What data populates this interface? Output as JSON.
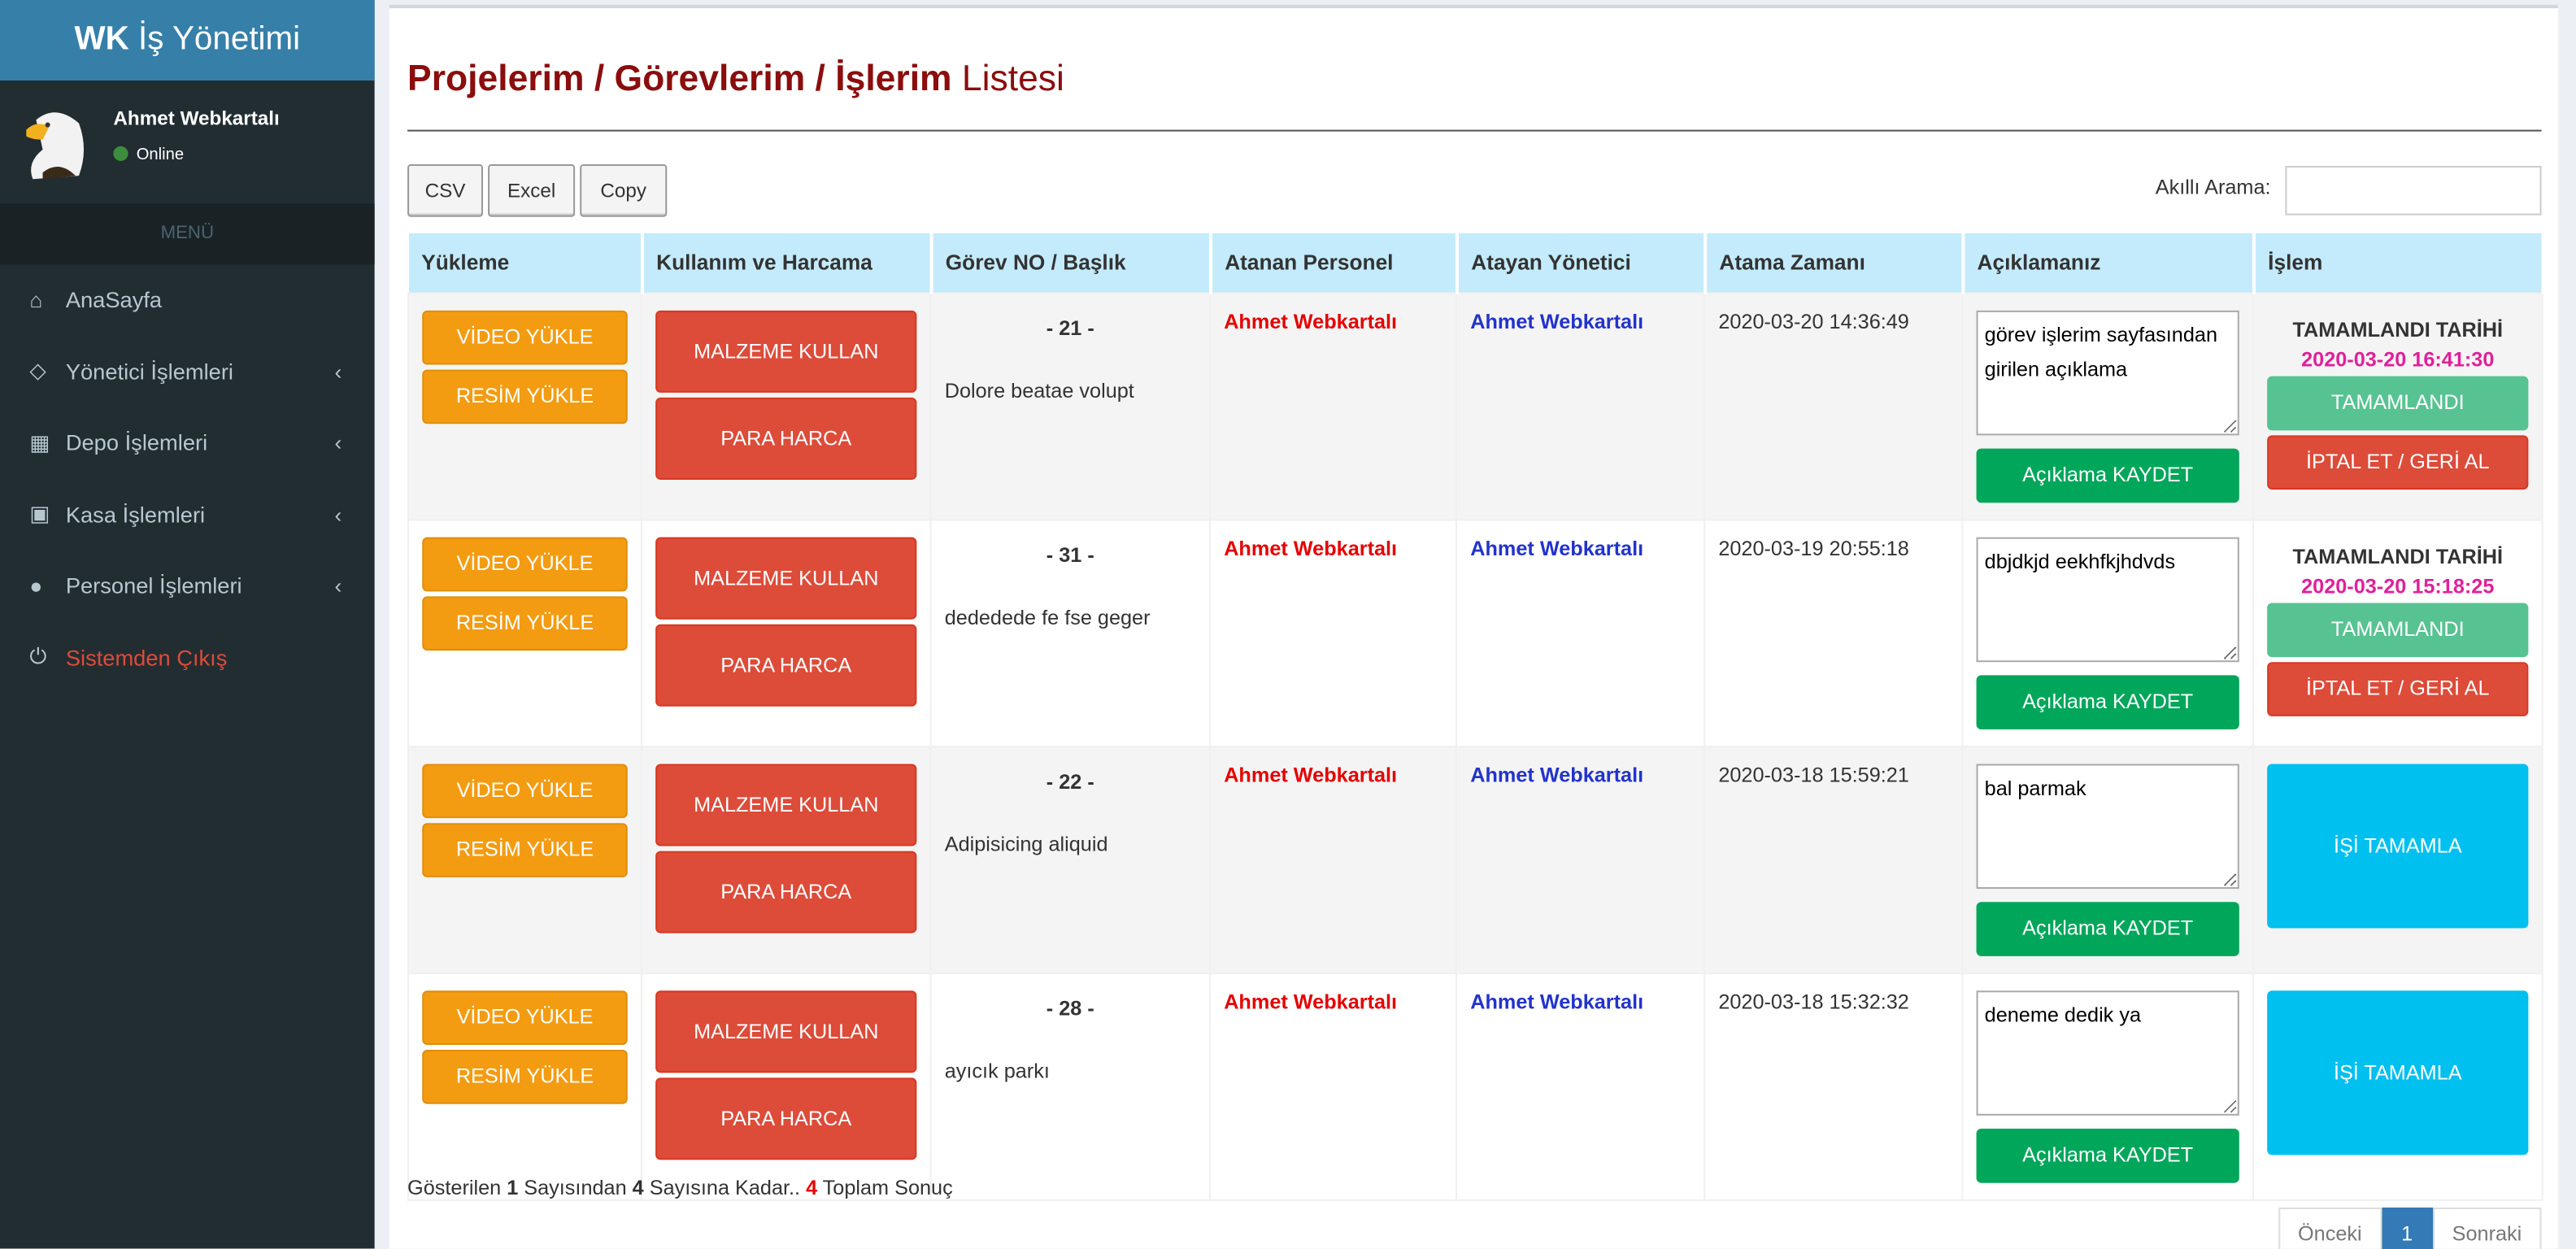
{
  "sidebar": {
    "logo_bold": "WK",
    "logo_rest": " İş Yönetimi",
    "user_name": "Ahmet Webkartalı",
    "status": "Online",
    "menu_header": "MENÜ",
    "items": [
      {
        "label": "AnaSayfa",
        "icon": "home-icon",
        "glyph": "⌂",
        "chevron": false
      },
      {
        "label": "Yönetici İşlemleri",
        "icon": "diamond-icon",
        "glyph": "◇",
        "chevron": true
      },
      {
        "label": "Depo İşlemleri",
        "icon": "cubes-icon",
        "glyph": "▦",
        "chevron": true
      },
      {
        "label": "Kasa İşlemleri",
        "icon": "money-icon",
        "glyph": "▣",
        "chevron": true
      },
      {
        "label": "Personel İşlemleri",
        "icon": "user-icon",
        "glyph": "●",
        "chevron": true
      },
      {
        "label": "Sistemden Çıkış",
        "icon": "power-icon",
        "glyph": "⏻",
        "chevron": false,
        "exit": true
      }
    ]
  },
  "page": {
    "title_bold": "Projelerim / Görevlerim / İşlerim",
    "title_rest": " Listesi"
  },
  "toolbar": {
    "csv": "CSV",
    "excel": "Excel",
    "copy": "Copy",
    "search_label": "Akıllı Arama:",
    "search_value": ""
  },
  "table": {
    "headers": [
      "Yükleme",
      "Kullanım ve Harcama",
      "Görev NO / Başlık",
      "Atanan Personel",
      "Atayan Yönetici",
      "Atama Zamanı",
      "Açıklamanız",
      "İşlem"
    ],
    "buttons": {
      "video": "VİDEO YÜKLE",
      "resim": "RESİM YÜKLE",
      "malzeme": "MALZEME KULLAN",
      "para": "PARA HARCA",
      "kaydet": "Açıklama KAYDET",
      "tamamlandi_tarihi": "TAMAMLANDI TARİHİ",
      "tamamlandi": "TAMAMLANDI",
      "iptal": "İPTAL ET / GERİ AL",
      "tamamla": "İŞİ TAMAMLA"
    },
    "rows": [
      {
        "no": "- 21 -",
        "title": "Dolore beatae volupt",
        "personel": "Ahmet Webkartalı",
        "yonetici": "Ahmet Webkartalı",
        "time": "2020-03-20 14:36:49",
        "note": "görev işlerim sayfasından girilen açıklama",
        "done": true,
        "done_time": "2020-03-20 16:41:30"
      },
      {
        "no": "- 31 -",
        "title": "dededede fe fse geger",
        "personel": "Ahmet Webkartalı",
        "yonetici": "Ahmet Webkartalı",
        "time": "2020-03-19 20:55:18",
        "note": "dbjdkjd eekhfkjhdvds",
        "done": true,
        "done_time": "2020-03-20 15:18:25"
      },
      {
        "no": "- 22 -",
        "title": "Adipisicing aliquid",
        "personel": "Ahmet Webkartalı",
        "yonetici": "Ahmet Webkartalı",
        "time": "2020-03-18 15:59:21",
        "note": "bal parmak",
        "done": false
      },
      {
        "no": "- 28 -",
        "title": "ayıcık parkı",
        "personel": "Ahmet Webkartalı",
        "yonetici": "Ahmet Webkartalı",
        "time": "2020-03-18 15:32:32",
        "note": "deneme dedik ya",
        "done": false
      }
    ]
  },
  "footer": {
    "p1": "Gösterilen ",
    "from": "1",
    "p2": " Sayısından ",
    "to": "4",
    "p3": " Sayısına Kadar.. ",
    "total": "4",
    "p4": " Toplam Sonuç"
  },
  "pagination": {
    "prev": "Önceki",
    "current": "1",
    "next": "Sonraki"
  }
}
